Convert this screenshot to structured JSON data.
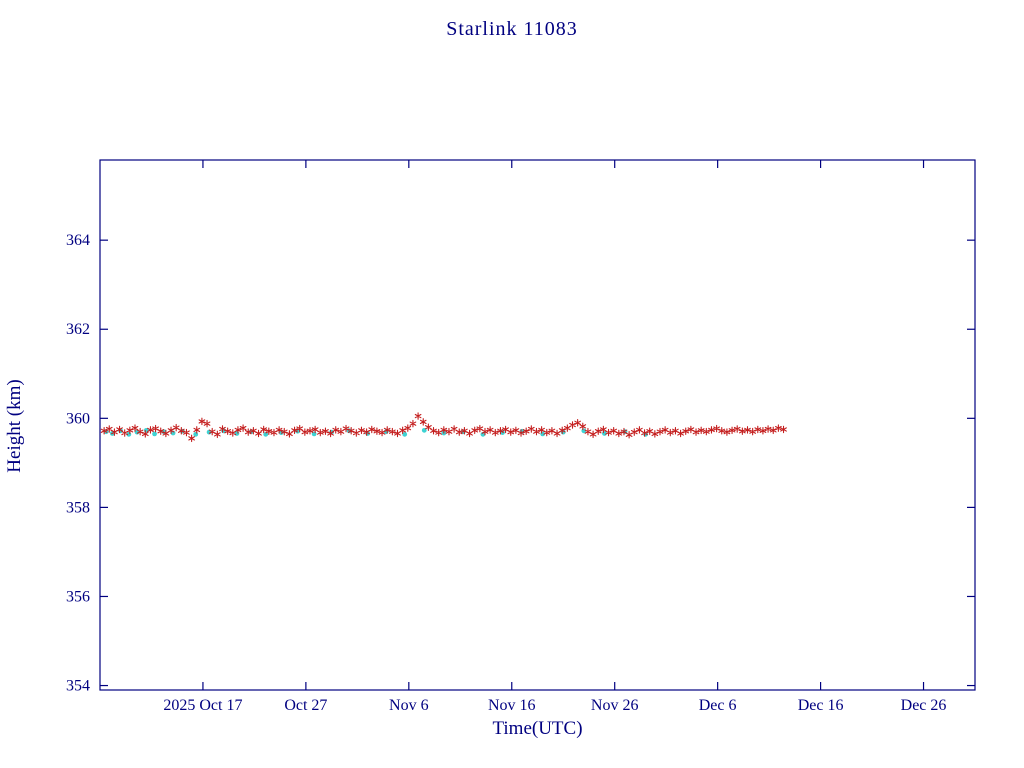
{
  "chart_data": {
    "type": "scatter",
    "title": "Starlink 11083",
    "xlabel": "Time(UTC)",
    "ylabel": "Height (km)",
    "grid": false,
    "legend": "none",
    "colors": {
      "axis": "#000080",
      "red_series": "#c41d1d",
      "cyan_series": "#3ed3d3",
      "background": "#ffffff"
    },
    "x_axis": {
      "unit": "days (0 = 2025 Oct 7, derived from tick labels)",
      "lim": [
        0,
        85
      ],
      "ticks": [
        {
          "v": 10,
          "label": "2025 Oct 17"
        },
        {
          "v": 20,
          "label": "Oct 27"
        },
        {
          "v": 30,
          "label": "Nov 6"
        },
        {
          "v": 40,
          "label": "Nov 16"
        },
        {
          "v": 50,
          "label": "Nov 26"
        },
        {
          "v": 60,
          "label": "Dec 6"
        },
        {
          "v": 70,
          "label": "Dec 16"
        },
        {
          "v": 80,
          "label": "Dec 26"
        }
      ]
    },
    "y_axis": {
      "unit": "km",
      "lim": [
        353.9,
        365.8
      ],
      "ticks": [
        {
          "v": 354,
          "label": "354"
        },
        {
          "v": 356,
          "label": "356"
        },
        {
          "v": 358,
          "label": "358"
        },
        {
          "v": 360,
          "label": "360"
        },
        {
          "v": 362,
          "label": "362"
        },
        {
          "v": 364,
          "label": "364"
        }
      ]
    },
    "series": [
      {
        "name": "cyan-dot-series",
        "marker": "dot",
        "color_key": "cyan_series",
        "points": [
          [
            0.6,
            359.7
          ],
          [
            1.2,
            359.66
          ],
          [
            2.0,
            359.72
          ],
          [
            2.8,
            359.64
          ],
          [
            3.6,
            359.69
          ],
          [
            4.5,
            359.73
          ],
          [
            5.3,
            359.65
          ],
          [
            6.2,
            359.7
          ],
          [
            7.1,
            359.67
          ],
          [
            8.0,
            359.71
          ],
          [
            9.3,
            359.64
          ],
          [
            10.6,
            359.69
          ],
          [
            12.0,
            359.72
          ],
          [
            13.3,
            359.66
          ],
          [
            14.7,
            359.7
          ],
          [
            16.1,
            359.64
          ],
          [
            17.6,
            359.68
          ],
          [
            19.2,
            359.71
          ],
          [
            20.8,
            359.65
          ],
          [
            22.5,
            359.69
          ],
          [
            24.2,
            359.72
          ],
          [
            26.0,
            359.66
          ],
          [
            27.8,
            359.7
          ],
          [
            29.6,
            359.64
          ],
          [
            31.5,
            359.73
          ],
          [
            33.4,
            359.67
          ],
          [
            35.3,
            359.7
          ],
          [
            37.2,
            359.64
          ],
          [
            39.1,
            359.68
          ],
          [
            41.0,
            359.71
          ],
          [
            43.0,
            359.65
          ],
          [
            45.0,
            359.69
          ],
          [
            47.0,
            359.72
          ],
          [
            49.0,
            359.66
          ],
          [
            51.0,
            359.7
          ],
          [
            53.0,
            359.64
          ]
        ]
      },
      {
        "name": "red-asterisk-series",
        "marker": "asterisk",
        "color_key": "red_series",
        "points": [
          [
            0.4,
            359.72
          ],
          [
            0.9,
            359.76
          ],
          [
            1.4,
            359.69
          ],
          [
            1.9,
            359.75
          ],
          [
            2.4,
            359.67
          ],
          [
            2.9,
            359.73
          ],
          [
            3.4,
            359.78
          ],
          [
            3.9,
            359.7
          ],
          [
            4.4,
            359.65
          ],
          [
            4.9,
            359.74
          ],
          [
            5.4,
            359.77
          ],
          [
            5.9,
            359.71
          ],
          [
            6.4,
            359.66
          ],
          [
            6.9,
            359.73
          ],
          [
            7.4,
            359.79
          ],
          [
            7.9,
            359.72
          ],
          [
            8.4,
            359.68
          ],
          [
            8.9,
            359.55
          ],
          [
            9.4,
            359.74
          ],
          [
            9.9,
            359.93
          ],
          [
            10.4,
            359.88
          ],
          [
            10.9,
            359.7
          ],
          [
            11.4,
            359.64
          ],
          [
            11.9,
            359.76
          ],
          [
            12.4,
            359.71
          ],
          [
            12.9,
            359.67
          ],
          [
            13.4,
            359.74
          ],
          [
            13.9,
            359.78
          ],
          [
            14.4,
            359.69
          ],
          [
            14.9,
            359.72
          ],
          [
            15.4,
            359.66
          ],
          [
            15.9,
            359.75
          ],
          [
            16.4,
            359.71
          ],
          [
            16.9,
            359.68
          ],
          [
            17.4,
            359.74
          ],
          [
            17.9,
            359.7
          ],
          [
            18.4,
            359.65
          ],
          [
            18.9,
            359.73
          ],
          [
            19.4,
            359.77
          ],
          [
            19.9,
            359.69
          ],
          [
            20.4,
            359.72
          ],
          [
            20.9,
            359.75
          ],
          [
            21.4,
            359.68
          ],
          [
            21.9,
            359.71
          ],
          [
            22.4,
            359.66
          ],
          [
            22.9,
            359.74
          ],
          [
            23.4,
            359.7
          ],
          [
            23.9,
            359.77
          ],
          [
            24.4,
            359.72
          ],
          [
            24.9,
            359.67
          ],
          [
            25.4,
            359.73
          ],
          [
            25.9,
            359.69
          ],
          [
            26.4,
            359.75
          ],
          [
            26.9,
            359.71
          ],
          [
            27.4,
            359.68
          ],
          [
            27.9,
            359.74
          ],
          [
            28.4,
            359.7
          ],
          [
            28.9,
            359.66
          ],
          [
            29.4,
            359.73
          ],
          [
            29.9,
            359.78
          ],
          [
            30.4,
            359.88
          ],
          [
            30.9,
            360.05
          ],
          [
            31.4,
            359.92
          ],
          [
            31.9,
            359.8
          ],
          [
            32.4,
            359.72
          ],
          [
            32.9,
            359.68
          ],
          [
            33.4,
            359.74
          ],
          [
            33.9,
            359.7
          ],
          [
            34.4,
            359.76
          ],
          [
            34.9,
            359.69
          ],
          [
            35.4,
            359.72
          ],
          [
            35.9,
            359.66
          ],
          [
            36.4,
            359.73
          ],
          [
            36.9,
            359.77
          ],
          [
            37.4,
            359.7
          ],
          [
            37.9,
            359.74
          ],
          [
            38.4,
            359.68
          ],
          [
            38.9,
            359.72
          ],
          [
            39.4,
            359.75
          ],
          [
            39.9,
            359.69
          ],
          [
            40.4,
            359.73
          ],
          [
            40.9,
            359.67
          ],
          [
            41.4,
            359.71
          ],
          [
            41.9,
            359.76
          ],
          [
            42.4,
            359.7
          ],
          [
            42.9,
            359.74
          ],
          [
            43.4,
            359.68
          ],
          [
            43.9,
            359.72
          ],
          [
            44.4,
            359.66
          ],
          [
            44.9,
            359.73
          ],
          [
            45.4,
            359.78
          ],
          [
            45.9,
            359.85
          ],
          [
            46.4,
            359.9
          ],
          [
            46.9,
            359.82
          ],
          [
            47.4,
            359.7
          ],
          [
            47.9,
            359.64
          ],
          [
            48.4,
            359.71
          ],
          [
            48.9,
            359.75
          ],
          [
            49.4,
            359.68
          ],
          [
            49.9,
            359.72
          ],
          [
            50.4,
            359.66
          ],
          [
            50.9,
            359.7
          ],
          [
            51.4,
            359.63
          ],
          [
            51.9,
            359.69
          ],
          [
            52.4,
            359.74
          ],
          [
            52.9,
            359.67
          ],
          [
            53.4,
            359.71
          ],
          [
            53.9,
            359.65
          ],
          [
            54.4,
            359.7
          ],
          [
            54.9,
            359.74
          ],
          [
            55.4,
            359.68
          ],
          [
            55.9,
            359.72
          ],
          [
            56.4,
            359.66
          ],
          [
            56.9,
            359.71
          ],
          [
            57.4,
            359.75
          ],
          [
            57.9,
            359.69
          ],
          [
            58.4,
            359.73
          ],
          [
            58.9,
            359.7
          ],
          [
            59.4,
            359.74
          ],
          [
            59.9,
            359.77
          ],
          [
            60.4,
            359.72
          ],
          [
            60.9,
            359.69
          ],
          [
            61.4,
            359.73
          ],
          [
            61.9,
            359.76
          ],
          [
            62.4,
            359.71
          ],
          [
            62.9,
            359.74
          ],
          [
            63.4,
            359.7
          ],
          [
            63.9,
            359.75
          ],
          [
            64.4,
            359.72
          ],
          [
            64.9,
            359.76
          ],
          [
            65.4,
            359.73
          ],
          [
            65.9,
            359.78
          ],
          [
            66.4,
            359.75
          ]
        ]
      }
    ]
  }
}
